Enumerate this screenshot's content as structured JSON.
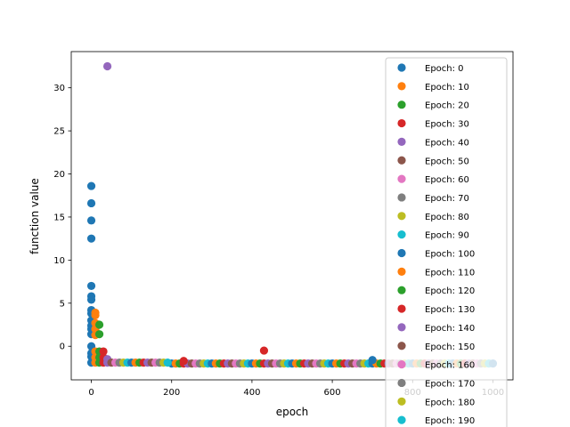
{
  "chart_data": {
    "type": "scatter",
    "title": "",
    "xlabel": "epoch",
    "ylabel": "function value",
    "xlim": [
      -50,
      1050
    ],
    "ylim": [
      -3.9,
      34.2
    ],
    "xticks": [
      0,
      200,
      400,
      600,
      800,
      1000
    ],
    "yticks": [
      0,
      5,
      10,
      15,
      20,
      25,
      30
    ],
    "grid": false,
    "legend_position": "upper-right",
    "baseline": -2.0,
    "palette": [
      "#1f77b4",
      "#ff7f0e",
      "#2ca02c",
      "#d62728",
      "#9467bd",
      "#8c564b",
      "#e377c2",
      "#7f7f7f",
      "#bcbd22",
      "#17becf"
    ],
    "series": [
      {
        "name": "Epoch: 0",
        "x": [
          0,
          0,
          0,
          0,
          0,
          0,
          0,
          0,
          0,
          0,
          0,
          0,
          0,
          0,
          0,
          0,
          0
        ],
        "y": [
          18.6,
          16.6,
          14.6,
          12.5,
          7.0,
          5.8,
          5.4,
          4.2,
          3.8,
          3.0,
          2.4,
          2.0,
          1.4,
          0.0,
          -0.8,
          -1.2,
          -1.9
        ]
      },
      {
        "name": "Epoch: 10",
        "x": [
          10,
          10,
          10,
          10,
          10,
          10,
          10,
          10
        ],
        "y": [
          3.9,
          3.6,
          2.7,
          2.0,
          1.3,
          -0.6,
          -1.3,
          -1.9
        ]
      },
      {
        "name": "Epoch: 20",
        "x": [
          20,
          20,
          20,
          20,
          20
        ],
        "y": [
          2.5,
          1.4,
          -0.6,
          -1.3,
          -1.9
        ]
      },
      {
        "name": "Epoch: 30",
        "x": [
          30,
          30,
          30
        ],
        "y": [
          -0.6,
          -1.3,
          -1.9
        ]
      },
      {
        "name": "Epoch: 40",
        "x": [
          40,
          40,
          40
        ],
        "y": [
          32.5,
          -1.5,
          -1.9
        ]
      },
      {
        "name": "Epoch: 50",
        "x": [
          50
        ],
        "y": [
          -1.9
        ]
      },
      {
        "name": "Epoch: 60",
        "x": [
          60
        ],
        "y": [
          -1.9
        ]
      },
      {
        "name": "Epoch: 70",
        "x": [
          70
        ],
        "y": [
          -1.9
        ]
      },
      {
        "name": "Epoch: 80",
        "x": [
          80
        ],
        "y": [
          -1.9
        ]
      },
      {
        "name": "Epoch: 90",
        "x": [
          90
        ],
        "y": [
          -1.9
        ]
      },
      {
        "name": "Epoch: 100",
        "x": [
          100
        ],
        "y": [
          -1.9
        ]
      },
      {
        "name": "Epoch: 110",
        "x": [
          110
        ],
        "y": [
          -1.9
        ]
      },
      {
        "name": "Epoch: 120",
        "x": [
          120
        ],
        "y": [
          -1.9
        ]
      },
      {
        "name": "Epoch: 130",
        "x": [
          130
        ],
        "y": [
          -1.9
        ]
      },
      {
        "name": "Epoch: 140",
        "x": [
          140
        ],
        "y": [
          -1.9
        ]
      },
      {
        "name": "Epoch: 150",
        "x": [
          150
        ],
        "y": [
          -1.9
        ]
      },
      {
        "name": "Epoch: 160",
        "x": [
          160
        ],
        "y": [
          -1.9
        ]
      },
      {
        "name": "Epoch: 170",
        "x": [
          170
        ],
        "y": [
          -1.9
        ]
      },
      {
        "name": "Epoch: 180",
        "x": [
          180
        ],
        "y": [
          -1.9
        ]
      },
      {
        "name": "Epoch: 190",
        "x": [
          190
        ],
        "y": [
          -1.9
        ]
      }
    ],
    "extra_points": [
      {
        "x": 430,
        "y": -0.5,
        "color_index": 3
      },
      {
        "x": 230,
        "y": -1.7,
        "color_index": 3
      },
      {
        "x": 700,
        "y": -1.6,
        "color_index": 0
      }
    ],
    "baseline_points_x_range": [
      200,
      1000
    ],
    "baseline_points_step": 10
  }
}
